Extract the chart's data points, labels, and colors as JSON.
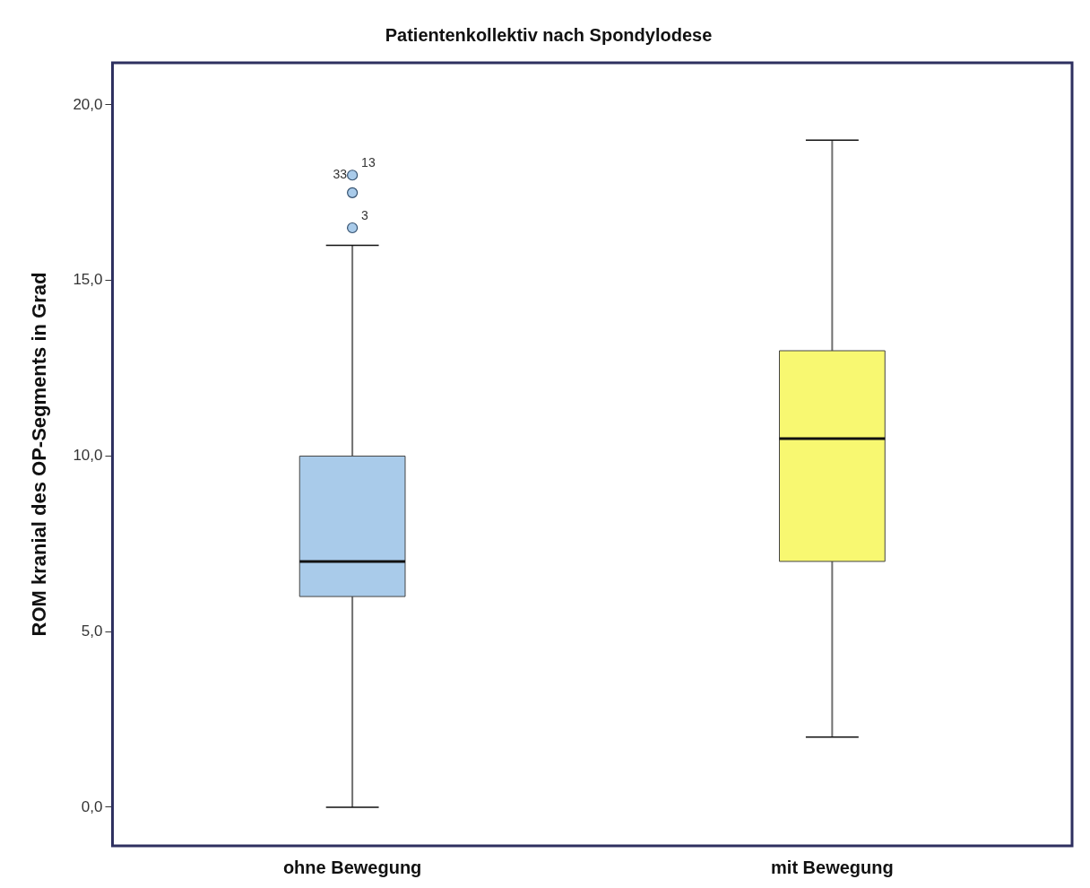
{
  "chart_data": {
    "type": "box",
    "title": "Patientenkollektiv nach Spondylodese",
    "ylabel": "ROM kranial des OP-Segments in Grad",
    "categories": [
      "ohne Bewegung",
      "mit Bewegung"
    ],
    "boxes": [
      {
        "low": 0,
        "q1": 6,
        "median": 7,
        "q3": 10,
        "high": 16,
        "outliers": [
          16.5,
          17.5,
          18
        ]
      },
      {
        "low": 2,
        "q1": 7,
        "median": 10.5,
        "q3": 13,
        "high": 19
      }
    ],
    "colors": [
      "#a9cbea",
      "#f8f871"
    ],
    "ylim": [
      -1.1,
      21.2
    ],
    "yticks": [
      {
        "value": 0,
        "label": "0,0"
      },
      {
        "value": 5,
        "label": "5,0"
      },
      {
        "value": 10,
        "label": "10,0"
      },
      {
        "value": 15,
        "label": "15,0"
      },
      {
        "value": 20,
        "label": "20,0"
      }
    ],
    "grid": false,
    "annotations": [
      "33",
      "13",
      "3"
    ]
  }
}
